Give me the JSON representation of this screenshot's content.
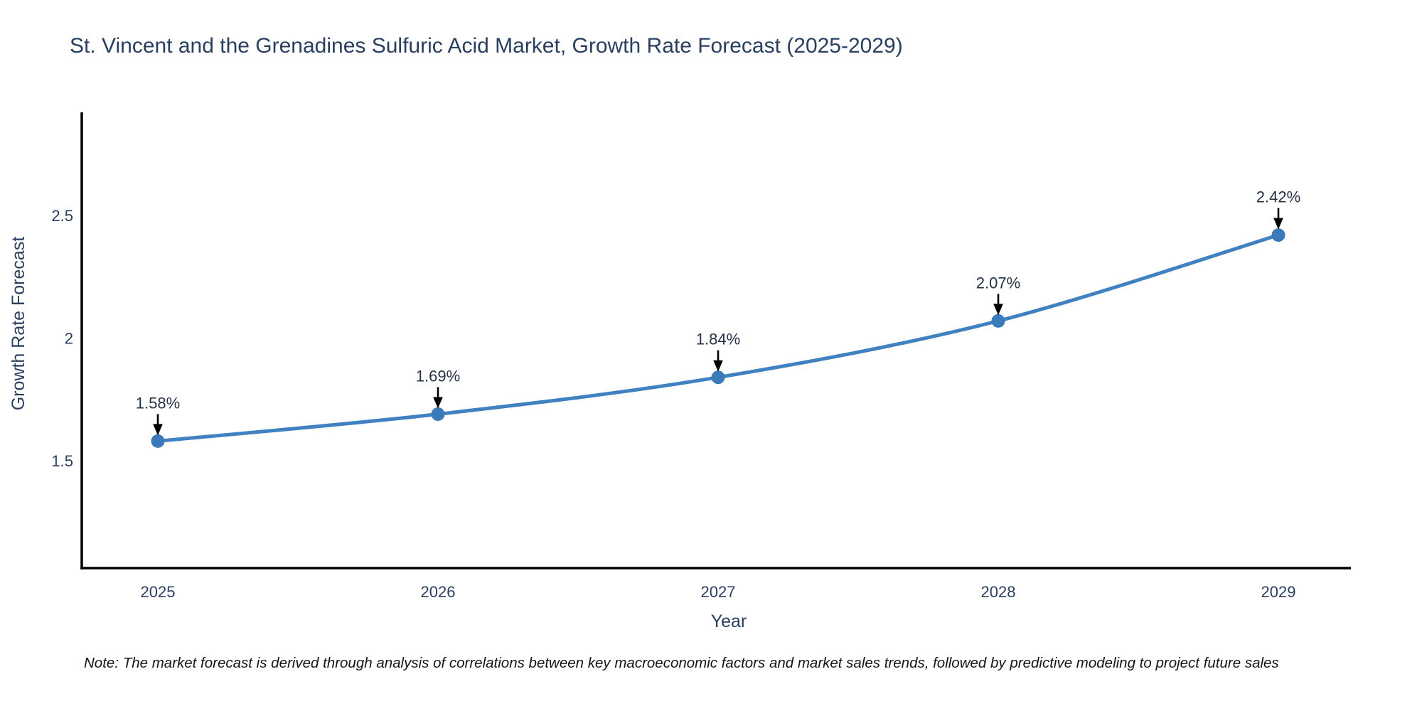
{
  "title": "St. Vincent and the Grenadines Sulfuric Acid Market, Growth Rate Forecast (2025-2029)",
  "axes": {
    "x_label": "Year",
    "y_label": "Growth Rate Forecast",
    "x_tick_labels": [
      "2025",
      "2026",
      "2027",
      "2028",
      "2029"
    ],
    "y_tick_labels": [
      "1.5",
      "2",
      "2.5"
    ],
    "y_tick_values": [
      1.5,
      2,
      2.5
    ]
  },
  "chart_data": {
    "type": "line",
    "x": [
      2025,
      2026,
      2027,
      2028,
      2029
    ],
    "series": [
      {
        "name": "Growth Rate Forecast",
        "values": [
          1.58,
          1.69,
          1.84,
          2.07,
          2.42
        ]
      }
    ],
    "point_labels": [
      "1.58%",
      "1.69%",
      "1.84%",
      "2.07%",
      "2.42%"
    ],
    "title": "St. Vincent and the Grenadines Sulfuric Acid Market, Growth Rate Forecast (2025-2029)",
    "xlabel": "Year",
    "ylabel": "Growth Rate Forecast",
    "xlim": [
      2024.73,
      2029.26
    ],
    "ylim": [
      1.06,
      2.92
    ],
    "grid": false,
    "legend": false,
    "line_shape": "spline",
    "annotations": "value labels with black down arrows above each point"
  },
  "note": "Note: The market forecast is derived through analysis of correlations between key macroeconomic factors and market sales trends, followed by predictive modeling to project future sales",
  "colors": {
    "background": "#ffffff",
    "title_text": "#2a3f5f",
    "tick_text": "#2a3f5f",
    "annotation_text": "#253346",
    "note_text": "#14141e",
    "axis_line": "#000000",
    "series_line": "#3f81c1",
    "marker_fill": "#3a7ab8",
    "arrow": "#000000"
  }
}
